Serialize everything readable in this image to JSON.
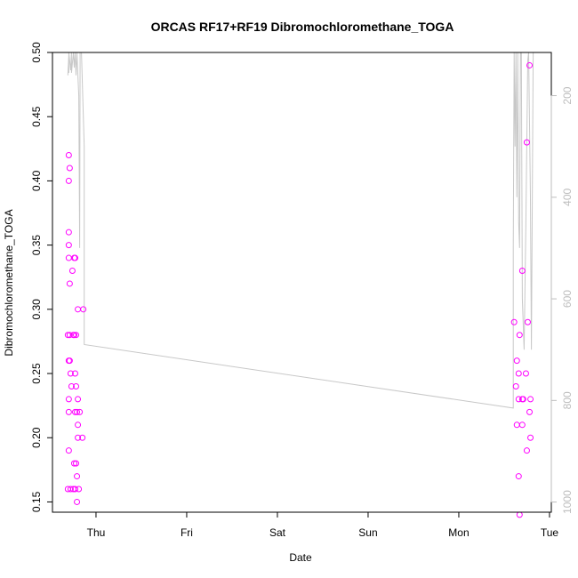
{
  "chart_data": {
    "type": "scatter",
    "title": "ORCAS RF17+RF19 Dibromochloromethane_TOGA",
    "xlabel": "Date",
    "ylabel": "Dibromochloromethane_TOGA",
    "x_unit": "days",
    "xlim": [
      -0.48,
      5.02
    ],
    "ylim": [
      0.142,
      0.5
    ],
    "x_ticks": [
      {
        "value": 0,
        "label": "Thu"
      },
      {
        "value": 1,
        "label": "Fri"
      },
      {
        "value": 2,
        "label": "Sat"
      },
      {
        "value": 3,
        "label": "Sun"
      },
      {
        "value": 4,
        "label": "Mon"
      },
      {
        "value": 5,
        "label": "Tue"
      }
    ],
    "y_ticks": [
      0.15,
      0.2,
      0.25,
      0.3,
      0.35,
      0.4,
      0.45,
      0.5
    ],
    "y_tick_labels": [
      "0.15",
      "0.20",
      "0.25",
      "0.30",
      "0.35",
      "0.40",
      "0.45",
      "0.50"
    ],
    "y2_ticks": [
      200,
      400,
      600,
      800,
      1000
    ],
    "y2_tick_labels": [
      "200",
      "400",
      "600",
      "800",
      "1000"
    ],
    "y2lim": [
      1020,
      115
    ],
    "series": [
      {
        "kind": "points",
        "color": "#ff00ff",
        "points": [
          [
            -0.3,
            0.42
          ],
          [
            -0.3,
            0.4
          ],
          [
            -0.29,
            0.41
          ],
          [
            -0.3,
            0.36
          ],
          [
            -0.3,
            0.35
          ],
          [
            -0.3,
            0.34
          ],
          [
            -0.29,
            0.32
          ],
          [
            -0.26,
            0.33
          ],
          [
            -0.24,
            0.34
          ],
          [
            -0.23,
            0.34
          ],
          [
            -0.31,
            0.28
          ],
          [
            -0.29,
            0.28
          ],
          [
            -0.25,
            0.28
          ],
          [
            -0.24,
            0.28
          ],
          [
            -0.22,
            0.28
          ],
          [
            -0.2,
            0.3
          ],
          [
            -0.14,
            0.3
          ],
          [
            -0.3,
            0.26
          ],
          [
            -0.29,
            0.26
          ],
          [
            -0.28,
            0.25
          ],
          [
            -0.23,
            0.25
          ],
          [
            -0.27,
            0.24
          ],
          [
            -0.22,
            0.24
          ],
          [
            -0.3,
            0.23
          ],
          [
            -0.2,
            0.23
          ],
          [
            -0.3,
            0.22
          ],
          [
            -0.23,
            0.22
          ],
          [
            -0.21,
            0.22
          ],
          [
            -0.18,
            0.22
          ],
          [
            -0.2,
            0.21
          ],
          [
            -0.2,
            0.2
          ],
          [
            -0.15,
            0.2
          ],
          [
            -0.3,
            0.19
          ],
          [
            -0.24,
            0.18
          ],
          [
            -0.22,
            0.18
          ],
          [
            -0.21,
            0.17
          ],
          [
            -0.31,
            0.16
          ],
          [
            -0.28,
            0.16
          ],
          [
            -0.25,
            0.16
          ],
          [
            -0.23,
            0.16
          ],
          [
            -0.19,
            0.16
          ],
          [
            -0.21,
            0.15
          ],
          [
            4.61,
            0.29
          ],
          [
            4.64,
            0.26
          ],
          [
            4.63,
            0.24
          ],
          [
            4.66,
            0.25
          ],
          [
            4.66,
            0.23
          ],
          [
            4.67,
            0.28
          ],
          [
            4.7,
            0.33
          ],
          [
            4.7,
            0.23
          ],
          [
            4.71,
            0.23
          ],
          [
            4.64,
            0.21
          ],
          [
            4.7,
            0.21
          ],
          [
            4.66,
            0.17
          ],
          [
            4.67,
            0.14
          ],
          [
            4.75,
            0.43
          ],
          [
            4.78,
            0.49
          ],
          [
            4.76,
            0.29
          ],
          [
            4.74,
            0.25
          ],
          [
            4.79,
            0.23
          ],
          [
            4.78,
            0.22
          ],
          [
            4.79,
            0.2
          ],
          [
            4.75,
            0.19
          ]
        ]
      },
      {
        "kind": "line",
        "axis": "right",
        "color": "#c8c8c8",
        "points": [
          [
            -0.31,
            160
          ],
          [
            -0.3,
            120
          ],
          [
            -0.305,
            150
          ],
          [
            -0.3,
            155
          ],
          [
            -0.3,
            115
          ],
          [
            -0.28,
            150
          ],
          [
            -0.27,
            115
          ],
          [
            -0.27,
            155
          ],
          [
            -0.25,
            115
          ],
          [
            -0.24,
            145
          ],
          [
            -0.23,
            115
          ],
          [
            -0.22,
            160
          ],
          [
            -0.21,
            115
          ],
          [
            -0.19,
            200
          ],
          [
            -0.18,
            500
          ],
          [
            -0.175,
            115
          ],
          [
            -0.16,
            115
          ],
          [
            -0.13,
            300
          ],
          [
            -0.13,
            690
          ],
          [
            4.6,
            815
          ],
          [
            4.6,
            500
          ],
          [
            4.61,
            115
          ],
          [
            4.62,
            300
          ],
          [
            4.63,
            115
          ],
          [
            4.64,
            400
          ],
          [
            4.65,
            115
          ],
          [
            4.66,
            450
          ],
          [
            4.67,
            500
          ],
          [
            4.68,
            115
          ],
          [
            4.69,
            115
          ],
          [
            4.7,
            600
          ],
          [
            4.72,
            700
          ],
          [
            4.74,
            450
          ],
          [
            4.76,
            130
          ],
          [
            4.77,
            115
          ],
          [
            4.79,
            400
          ],
          [
            4.8,
            700
          ],
          [
            4.82,
            115
          ]
        ]
      }
    ]
  }
}
